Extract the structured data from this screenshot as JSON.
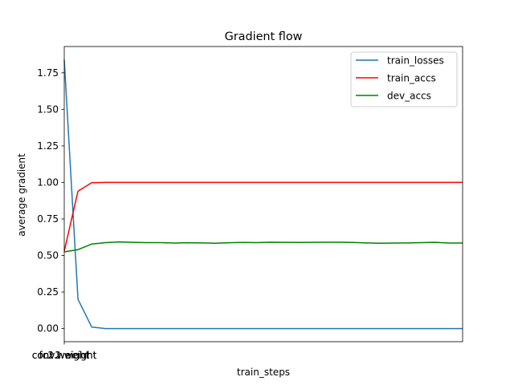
{
  "chart_data": {
    "type": "line",
    "title": "Gradient flow",
    "xlabel": "train_steps",
    "ylabel": "average gradient",
    "ylim": [
      -0.09,
      1.93
    ],
    "yticks": [
      "0.00",
      "0.25",
      "0.50",
      "0.75",
      "1.00",
      "1.25",
      "1.50",
      "1.75"
    ],
    "ytick_values": [
      0,
      0.25,
      0.5,
      0.75,
      1.0,
      1.25,
      1.5,
      1.75
    ],
    "xtick_labels": [
      "conv1.weight",
      "fc1.weight",
      "fc2.weight",
      "conv2.weight"
    ],
    "grid": false,
    "legend_position": "top-right",
    "n_points": 30,
    "series": [
      {
        "name": "train_losses",
        "color": "#1f77b4",
        "values": [
          1.84,
          0.2,
          0.01,
          0.0,
          0.0,
          0.0,
          0.0,
          0.0,
          0.0,
          0.0,
          0.0,
          0.0,
          0.0,
          0.0,
          0.0,
          0.0,
          0.0,
          0.0,
          0.0,
          0.0,
          0.0,
          0.0,
          0.0,
          0.0,
          0.0,
          0.0,
          0.0,
          0.0,
          0.0,
          0.0
        ]
      },
      {
        "name": "train_accs",
        "color": "#ff0000",
        "values": [
          0.53,
          0.94,
          0.998,
          1.0,
          1.0,
          1.0,
          1.0,
          1.0,
          1.0,
          1.0,
          1.0,
          1.0,
          1.0,
          1.0,
          1.0,
          1.0,
          1.0,
          1.0,
          1.0,
          1.0,
          1.0,
          1.0,
          1.0,
          1.0,
          1.0,
          1.0,
          1.0,
          1.0,
          1.0,
          1.0
        ]
      },
      {
        "name": "dev_accs",
        "color": "#008000",
        "values": [
          0.525,
          0.54,
          0.578,
          0.588,
          0.593,
          0.59,
          0.588,
          0.588,
          0.585,
          0.587,
          0.586,
          0.584,
          0.587,
          0.589,
          0.588,
          0.591,
          0.59,
          0.589,
          0.59,
          0.591,
          0.591,
          0.589,
          0.586,
          0.584,
          0.585,
          0.586,
          0.588,
          0.59,
          0.585,
          0.585
        ]
      }
    ]
  }
}
